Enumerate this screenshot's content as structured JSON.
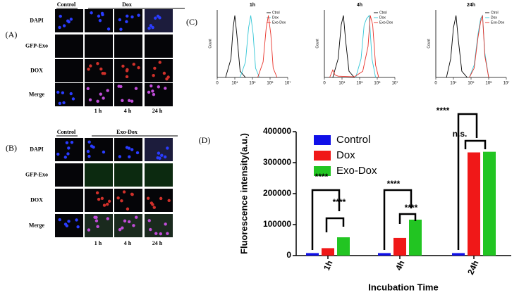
{
  "panel_labels": [
    "(A)",
    "(B)",
    "(C)",
    "(D)"
  ],
  "panel_a": {
    "header": [
      "Control",
      "Dox"
    ],
    "rows": [
      "DAPI",
      "GFP-Exo",
      "DOX",
      "Merge"
    ],
    "columns": [
      "1 h",
      "4 h",
      "24 h"
    ]
  },
  "panel_b": {
    "header": [
      "Control",
      "Exo-Dox"
    ],
    "rows": [
      "DAPI",
      "GFP-Exo",
      "DOX",
      "Merge"
    ],
    "columns": [
      "1 h",
      "4 h",
      "24 h"
    ]
  },
  "chart_data": [
    {
      "type": "line",
      "title": "1h",
      "ylabel": "Count",
      "xscale": "biexponential",
      "xlim": [
        0,
        10000000
      ],
      "ylim": [
        0,
        100
      ],
      "xticks": [
        0,
        {
          "value": 10000,
          "label": "10⁴"
        },
        {
          "value": 100000,
          "label": "10⁵"
        },
        {
          "value": 1000000,
          "label": "10⁶"
        },
        {
          "value": 10000000,
          "label": "10⁷"
        }
      ],
      "legend": "upper right",
      "series": [
        {
          "name": "Ctrol",
          "color": "#000000",
          "x": [
            3000,
            6000,
            8000,
            10000,
            13000,
            20000,
            40000
          ],
          "values": [
            0,
            30,
            80,
            100,
            70,
            10,
            0
          ]
        },
        {
          "name": "Dox",
          "color": "#33c6d6",
          "x": [
            20000,
            40000,
            60000,
            80000,
            110000,
            150000,
            250000
          ],
          "values": [
            0,
            25,
            80,
            100,
            70,
            15,
            0
          ]
        },
        {
          "name": "Exo-Dox",
          "color": "#e8332a",
          "x": [
            200000,
            400000,
            600000,
            800000,
            1100000,
            1500000,
            2500000
          ],
          "values": [
            0,
            25,
            80,
            100,
            70,
            15,
            0
          ]
        }
      ]
    },
    {
      "type": "line",
      "title": "4h",
      "ylabel": "Count",
      "xscale": "biexponential",
      "xlim": [
        0,
        10000000
      ],
      "ylim": [
        0,
        100
      ],
      "xticks": [
        0,
        {
          "value": 10000,
          "label": "10⁴"
        },
        {
          "value": 100000,
          "label": "10⁵"
        },
        {
          "value": 1000000,
          "label": "10⁶"
        },
        {
          "value": 10000000,
          "label": "10⁷"
        }
      ],
      "legend": "upper right",
      "series": [
        {
          "name": "Ctrol",
          "color": "#000000",
          "x": [
            3000,
            6000,
            9000,
            12000,
            16000,
            25000,
            50000
          ],
          "values": [
            0,
            30,
            85,
            100,
            60,
            10,
            0
          ]
        },
        {
          "name": "Dox",
          "color": "#33c6d6",
          "x": [
            60000,
            120000,
            180000,
            250000,
            350000,
            500000,
            800000
          ],
          "values": [
            0,
            30,
            85,
            95,
            100,
            30,
            0
          ]
        },
        {
          "name": "Exo-Dox",
          "color": "#e8332a",
          "x": [
            2000,
            3000,
            4000,
            6000,
            50000,
            150000,
            300000,
            400000,
            550000,
            800000,
            1200000
          ],
          "values": [
            0,
            12,
            4,
            2,
            1,
            10,
            50,
            100,
            85,
            20,
            0
          ]
        }
      ]
    },
    {
      "type": "line",
      "title": "24h",
      "ylabel": "Count",
      "xscale": "biexponential",
      "xlim": [
        0,
        10000000
      ],
      "ylim": [
        0,
        100
      ],
      "xticks": [
        0,
        {
          "value": 10000,
          "label": "10⁴"
        },
        {
          "value": 100000,
          "label": "10⁵"
        },
        {
          "value": 1000000,
          "label": "10⁶"
        },
        {
          "value": 10000000,
          "label": "10⁷"
        }
      ],
      "legend": "upper right",
      "series": [
        {
          "name": "Ctrol",
          "color": "#000000",
          "x": [
            4000,
            7000,
            10000,
            14000,
            19000,
            30000,
            60000
          ],
          "values": [
            0,
            30,
            80,
            100,
            60,
            10,
            0
          ]
        },
        {
          "name": "Dox",
          "color": "#33c6d6",
          "x": [
            80000,
            150000,
            250000,
            350000,
            450000,
            600000,
            1000000
          ],
          "values": [
            0,
            20,
            70,
            95,
            100,
            40,
            0
          ]
        },
        {
          "name": "Exo-Dox",
          "color": "#e8332a",
          "x": [
            80000,
            150000,
            250000,
            350000,
            450000,
            600000,
            1000000
          ],
          "values": [
            0,
            15,
            65,
            90,
            100,
            35,
            0
          ]
        }
      ]
    },
    {
      "type": "bar",
      "xlabel": "Incubation Time",
      "ylabel": "Fluorescence intensity(a.u.)",
      "categories": [
        "1h",
        "4h",
        "24h"
      ],
      "ylim": [
        0,
        400000
      ],
      "yticks": [
        0,
        100000,
        200000,
        300000,
        400000
      ],
      "legend": "upper left",
      "series": [
        {
          "name": "Control",
          "color": "#1010e8",
          "values": [
            8000,
            8000,
            8000
          ]
        },
        {
          "name": "Dox",
          "color": "#f01818",
          "values": [
            24000,
            57000,
            333000
          ]
        },
        {
          "name": "Exo-Dox",
          "color": "#22c522",
          "values": [
            59000,
            116000,
            335000
          ]
        }
      ],
      "annotations": [
        "****",
        "****",
        "****",
        "****",
        "****",
        "n.s."
      ]
    }
  ]
}
